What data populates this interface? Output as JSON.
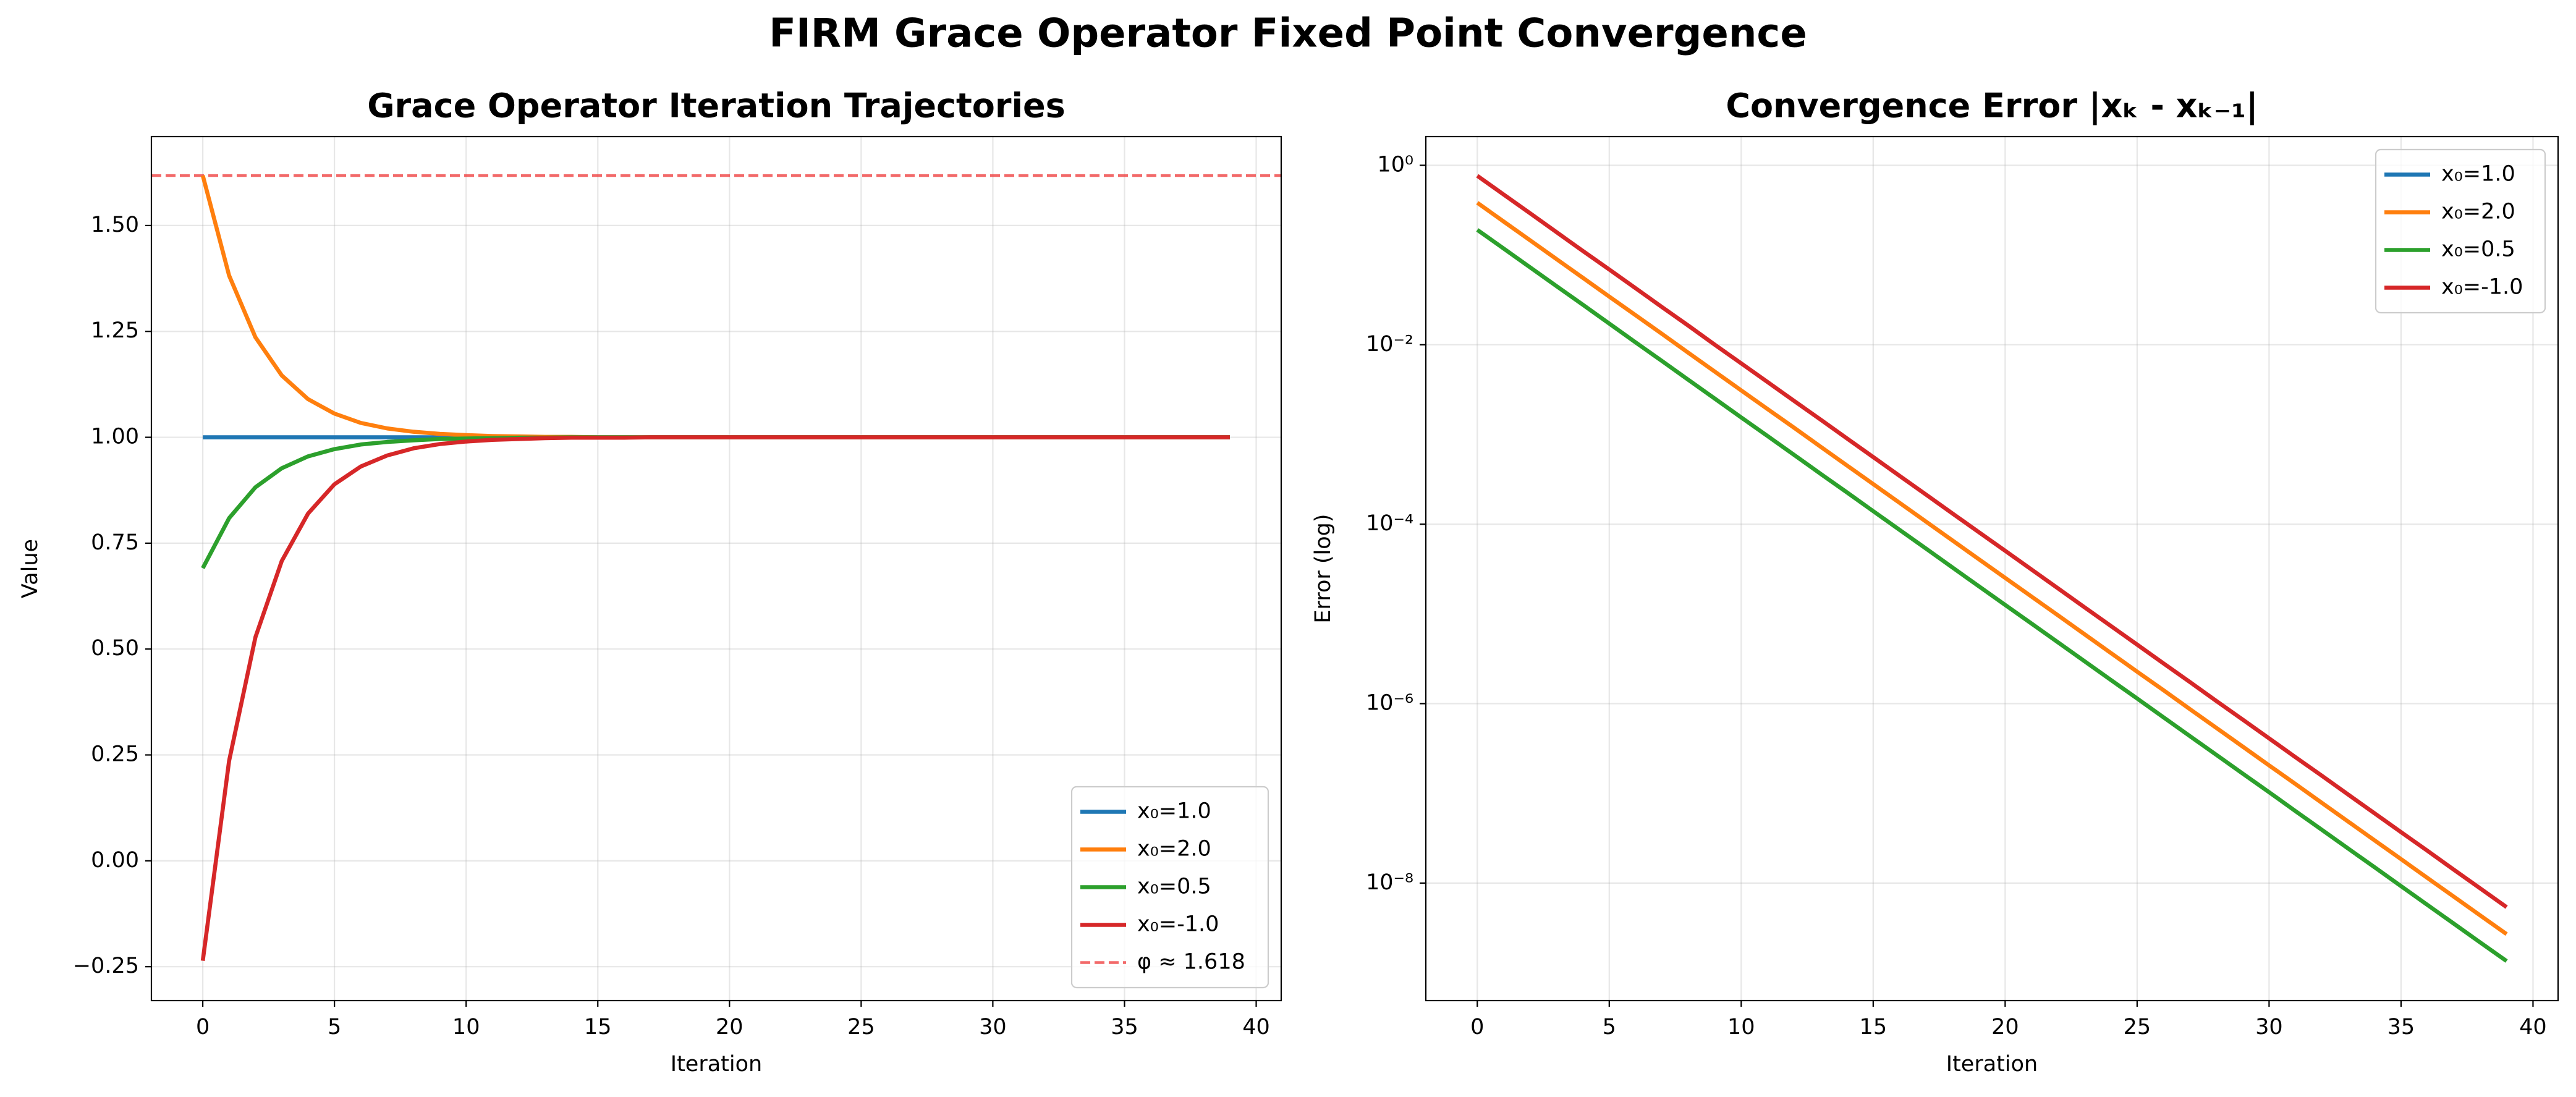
{
  "title": "FIRM Grace Operator Fixed Point Convergence",
  "chart_data": [
    {
      "type": "line",
      "title": "Grace Operator Iteration Trajectories",
      "xlabel": "Iteration",
      "ylabel": "Value",
      "x": [
        0,
        1,
        2,
        3,
        4,
        5,
        6,
        7,
        8,
        9,
        10,
        11,
        12,
        13,
        14,
        15,
        16,
        17,
        18,
        19,
        20,
        21,
        22,
        23,
        24,
        25,
        26,
        27,
        28,
        29,
        30,
        31,
        32,
        33,
        34,
        35,
        36,
        37,
        38,
        39
      ],
      "series": [
        {
          "name": "x₀=1.0",
          "color": "#1f77b4",
          "values": [
            1,
            1,
            1,
            1,
            1,
            1,
            1,
            1,
            1,
            1,
            1,
            1,
            1,
            1,
            1,
            1,
            1,
            1,
            1,
            1,
            1,
            1,
            1,
            1,
            1,
            1,
            1,
            1,
            1,
            1,
            1,
            1,
            1,
            1,
            1,
            1,
            1,
            1,
            1,
            1
          ]
        },
        {
          "name": "x₀=2.0",
          "color": "#ff7f0e",
          "values": [
            1.618,
            1.382,
            1.236,
            1.146,
            1.09,
            1.056,
            1.034,
            1.021,
            1.013,
            1.008,
            1.005,
            1.003,
            1.002,
            1.001,
            1.001,
            1,
            1,
            1,
            1,
            1,
            1,
            1,
            1,
            1,
            1,
            1,
            1,
            1,
            1,
            1,
            1,
            1,
            1,
            1,
            1,
            1,
            1,
            1,
            1,
            1
          ]
        },
        {
          "name": "x₀=0.5",
          "color": "#2ca02c",
          "values": [
            0.691,
            0.809,
            0.882,
            0.927,
            0.955,
            0.972,
            0.983,
            0.989,
            0.993,
            0.996,
            0.997,
            0.998,
            0.999,
            0.999,
            1,
            1,
            1,
            1,
            1,
            1,
            1,
            1,
            1,
            1,
            1,
            1,
            1,
            1,
            1,
            1,
            1,
            1,
            1,
            1,
            1,
            1,
            1,
            1,
            1,
            1
          ]
        },
        {
          "name": "x₀=-1.0",
          "color": "#d62728",
          "values": [
            -0.236,
            0.236,
            0.528,
            0.708,
            0.82,
            0.889,
            0.931,
            0.957,
            0.974,
            0.984,
            0.99,
            0.994,
            0.996,
            0.998,
            0.999,
            0.999,
            0.999,
            1,
            1,
            1,
            1,
            1,
            1,
            1,
            1,
            1,
            1,
            1,
            1,
            1,
            1,
            1,
            1,
            1,
            1,
            1,
            1,
            1,
            1,
            1
          ]
        }
      ],
      "hlines": [
        {
          "name": "φ ≈ 1.618",
          "value": 1.618,
          "color": "#ef4444",
          "dash": true
        }
      ],
      "xlim": [
        -1.95,
        40.95
      ],
      "xticks": [
        0,
        5,
        10,
        15,
        20,
        25,
        30,
        35,
        40
      ],
      "ylim": [
        -0.33,
        1.71
      ],
      "yticks": [
        {
          "value": -0.25,
          "label": "−0.25"
        },
        {
          "value": 0,
          "label": "0.00"
        },
        0.25,
        {
          "value": 0.5,
          "label": "0.50"
        },
        0.75,
        {
          "value": 1,
          "label": "1.00"
        },
        1.25,
        {
          "value": 1.5,
          "label": "1.50"
        }
      ],
      "grid": true,
      "legend": "lower right"
    },
    {
      "type": "line",
      "title": "Convergence Error |xₖ - xₖ₋₁|",
      "xlabel": "Iteration",
      "ylabel": "Error (log)",
      "x": [
        0,
        1,
        2,
        3,
        4,
        5,
        6,
        7,
        8,
        9,
        10,
        11,
        12,
        13,
        14,
        15,
        16,
        17,
        18,
        19,
        20,
        21,
        22,
        23,
        24,
        25,
        26,
        27,
        28,
        29,
        30,
        31,
        32,
        33,
        34,
        35,
        36,
        37,
        38,
        39
      ],
      "series": [
        {
          "name": "x₀=1.0",
          "color": "#1f77b4",
          "values": [
            null,
            null,
            null,
            null,
            null,
            null,
            null,
            null,
            null,
            null,
            null,
            null,
            null,
            null,
            null,
            null,
            null,
            null,
            null,
            null,
            null,
            null,
            null,
            null,
            null,
            null,
            null,
            null,
            null,
            null,
            null,
            null,
            null,
            null,
            null,
            null,
            null,
            null,
            null,
            null
          ]
        },
        {
          "name": "x₀=2.0",
          "color": "#ff7f0e",
          "values": [
            0.382,
            0.236,
            0.146,
            0.0902,
            0.0557,
            0.0344,
            0.0213,
            0.0132,
            0.00813,
            0.00502,
            0.0031,
            0.00192,
            0.00119,
            0.000733,
            0.000453,
            0.00028,
            0.000173,
            0.000107,
            6.61e-05,
            4.08e-05,
            2.52e-05,
            1.56e-05,
            9.64e-06,
            5.96e-06,
            3.68e-06,
            2.27e-06,
            1.41e-06,
            8.69e-07,
            5.37e-07,
            3.32e-07,
            2.05e-07,
            1.27e-07,
            7.83e-08,
            4.84e-08,
            2.99e-08,
            1.85e-08,
            1.14e-08,
            7.06e-09,
            4.36e-09,
            2.7e-09
          ]
        },
        {
          "name": "x₀=0.5",
          "color": "#2ca02c",
          "values": [
            0.191,
            0.118,
            0.0729,
            0.0451,
            0.0279,
            0.0172,
            0.0106,
            0.00658,
            0.00406,
            0.00251,
            0.00155,
            0.000959,
            0.000593,
            0.000366,
            0.000227,
            0.00014,
            8.65e-05,
            5.35e-05,
            3.3e-05,
            2.04e-05,
            1.26e-05,
            7.8e-06,
            4.82e-06,
            2.98e-06,
            1.84e-06,
            1.14e-06,
            7.03e-07,
            4.34e-07,
            2.69e-07,
            1.66e-07,
            1.03e-07,
            6.34e-08,
            3.92e-08,
            2.42e-08,
            1.5e-08,
            9.24e-09,
            5.71e-09,
            3.53e-09,
            2.18e-09,
            1.35e-09
          ]
        },
        {
          "name": "x₀=-1.0",
          "color": "#d62728",
          "values": [
            0.764,
            0.472,
            0.292,
            0.18,
            0.111,
            0.0689,
            0.0426,
            0.0263,
            0.0163,
            0.01,
            0.00621,
            0.00384,
            0.00237,
            0.00147,
            0.000906,
            0.00056,
            0.000346,
            0.000214,
            0.000132,
            8.17e-05,
            5.05e-05,
            3.12e-05,
            1.93e-05,
            1.19e-05,
            7.36e-06,
            4.55e-06,
            2.81e-06,
            1.74e-06,
            1.07e-06,
            6.64e-07,
            4.1e-07,
            2.53e-07,
            1.57e-07,
            9.68e-08,
            5.98e-08,
            3.7e-08,
            2.29e-08,
            1.41e-08,
            8.73e-09,
            5.39e-09
          ]
        }
      ],
      "xlim": [
        -1.95,
        40.95
      ],
      "xticks": [
        0,
        5,
        10,
        15,
        20,
        25,
        30,
        35,
        40
      ],
      "ylim": [
        4.9e-10,
        2.09
      ],
      "log": true,
      "yticks": [
        {
          "value": 1,
          "label": "10⁰"
        },
        {
          "value": 0.01,
          "label": "10⁻²"
        },
        {
          "value": 0.0001,
          "label": "10⁻⁴"
        },
        {
          "value": 1e-06,
          "label": "10⁻⁶"
        },
        {
          "value": 1e-08,
          "label": "10⁻⁸"
        }
      ],
      "grid": true,
      "legend": "upper right"
    }
  ]
}
